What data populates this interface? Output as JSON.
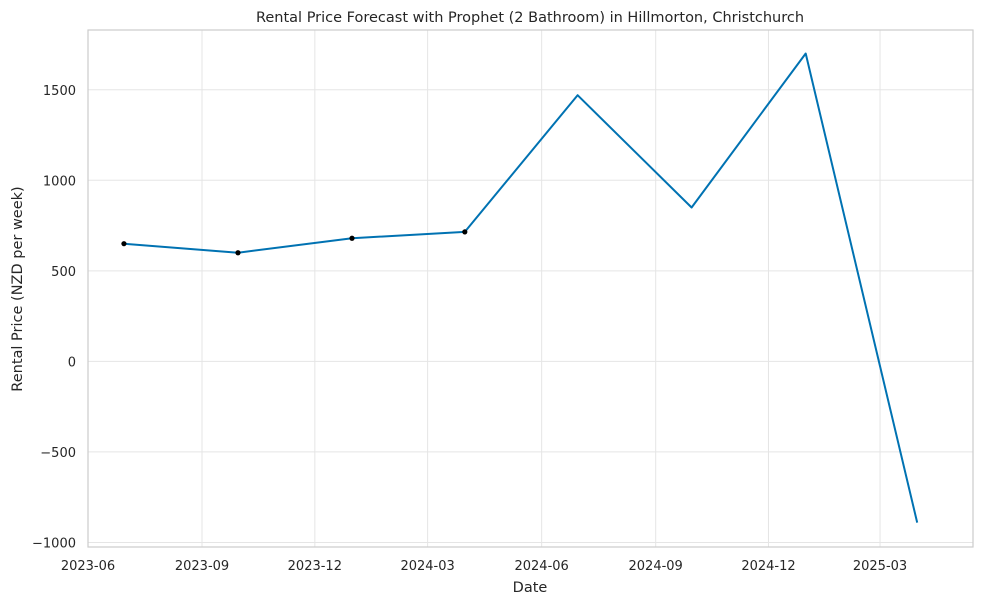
{
  "chart_data": {
    "type": "line",
    "title": "Rental Price Forecast with Prophet (2 Bathroom) in Hillmorton, Christchurch",
    "xlabel": "Date",
    "ylabel": "Rental Price (NZD per week)",
    "xlim": [
      "2023-06-01",
      "2025-05-15"
    ],
    "ylim": [
      -1025,
      1830
    ],
    "grid": true,
    "x_ticks": [
      "2023-06",
      "2023-09",
      "2023-12",
      "2024-03",
      "2024-06",
      "2024-09",
      "2024-12",
      "2025-03"
    ],
    "y_ticks": [
      -1000,
      -500,
      0,
      500,
      1000,
      1500
    ],
    "y_tick_labels": [
      "−1000",
      "−500",
      "0",
      "500",
      "1000",
      "1500"
    ],
    "series": [
      {
        "style": "line",
        "color": "#0072b2",
        "x": [
          "2023-06-30",
          "2023-09-30",
          "2023-12-31",
          "2024-03-31",
          "2024-06-30",
          "2024-09-30",
          "2024-12-31",
          "2025-03-31"
        ],
        "y": [
          650,
          600,
          680,
          715,
          1470,
          850,
          1700,
          -890
        ]
      },
      {
        "style": "points",
        "color": "#000000",
        "x": [
          "2023-06-30",
          "2023-09-30",
          "2023-12-31",
          "2024-03-31"
        ],
        "y": [
          650,
          600,
          680,
          715
        ]
      }
    ]
  }
}
